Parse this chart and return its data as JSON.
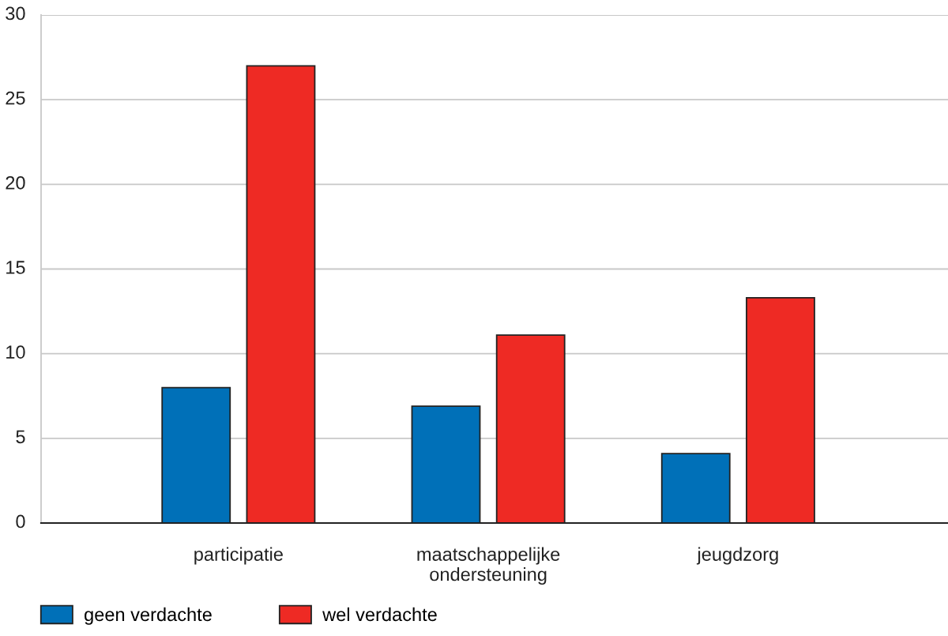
{
  "chart_data": {
    "type": "bar",
    "categories": [
      "participatie",
      "maatschappelijke\nondersteuning",
      "jeugdzorg"
    ],
    "series": [
      {
        "name": "geen verdachte",
        "color": "#0070b8",
        "values": [
          8,
          6.9,
          4.1
        ]
      },
      {
        "name": "wel verdachte",
        "color": "#ee2a24",
        "values": [
          27,
          11.1,
          13.3
        ]
      }
    ],
    "ylim": [
      0,
      30
    ],
    "yticks": [
      0,
      5,
      10,
      15,
      20,
      25,
      30
    ],
    "grid": "y",
    "legend": "bottom left"
  }
}
